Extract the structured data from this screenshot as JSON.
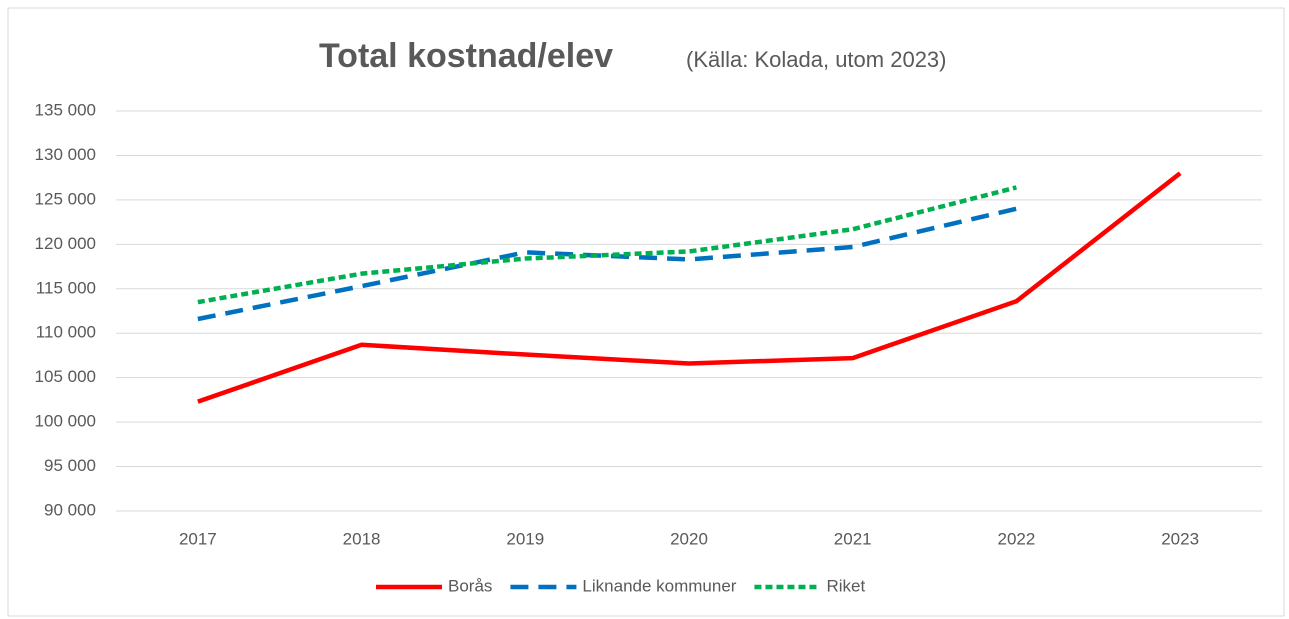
{
  "chart_data": {
    "type": "line",
    "title": "Total kostnad/elev",
    "subtitle": "(Källa: Kolada, utom 2023)",
    "categories": [
      "2017",
      "2018",
      "2019",
      "2020",
      "2021",
      "2022",
      "2023"
    ],
    "series": [
      {
        "name": "Borås",
        "color": "#ff0000",
        "dash": "solid",
        "values": [
          102300,
          108700,
          107600,
          106600,
          107200,
          113600,
          128000
        ]
      },
      {
        "name": "Liknande kommuner",
        "color": "#0070c0",
        "dash": "dash",
        "values": [
          111600,
          115300,
          119100,
          118300,
          119700,
          124000,
          null
        ]
      },
      {
        "name": "Riket",
        "color": "#00b050",
        "dash": "dot",
        "values": [
          113500,
          116700,
          118400,
          119200,
          121700,
          126400,
          null
        ]
      }
    ],
    "ylim": [
      90000,
      135000
    ],
    "yticks": [
      {
        "value": 90000,
        "label": "90 000"
      },
      {
        "value": 95000,
        "label": "95 000"
      },
      {
        "value": 100000,
        "label": "100 000"
      },
      {
        "value": 105000,
        "label": "105 000"
      },
      {
        "value": 110000,
        "label": "110 000"
      },
      {
        "value": 115000,
        "label": "115 000"
      },
      {
        "value": 120000,
        "label": "120 000"
      },
      {
        "value": 125000,
        "label": "125 000"
      },
      {
        "value": 130000,
        "label": "130 000"
      },
      {
        "value": 135000,
        "label": "135 000"
      }
    ],
    "grid": true,
    "legend": "bottom"
  }
}
